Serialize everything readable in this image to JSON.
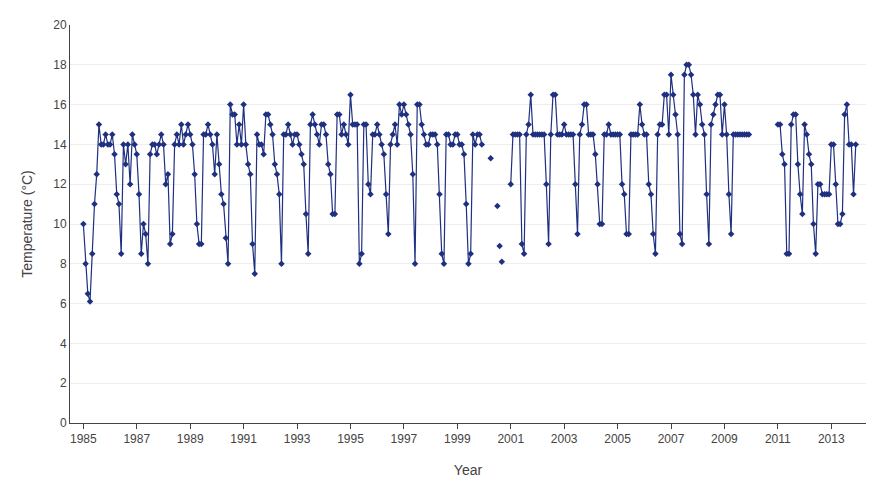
{
  "chart_data": {
    "type": "line",
    "xlabel": "Year",
    "ylabel": "Temperature (°C)",
    "xlim": [
      1984.5,
      2014.3
    ],
    "xticks": [
      1985,
      1987,
      1989,
      1991,
      1993,
      1995,
      1997,
      1999,
      2001,
      2003,
      2005,
      2007,
      2009,
      2011,
      2013
    ],
    "ylim": [
      0,
      20
    ],
    "yticks": [
      0,
      2,
      4,
      6,
      8,
      10,
      12,
      14,
      16,
      18,
      20
    ],
    "grid": true,
    "marker": "diamond",
    "series": [
      {
        "color": "#1F3080",
        "line_style": "solid",
        "x": [
          1985.0,
          1985.083,
          1985.167,
          1985.25,
          1985.333,
          1985.417,
          1985.5,
          1985.583,
          1985.667,
          1985.75,
          1985.833,
          1985.917,
          1986.0,
          1986.083,
          1986.167,
          1986.25,
          1986.333,
          1986.417,
          1986.5,
          1986.583,
          1986.667,
          1986.75,
          1986.833,
          1986.917,
          1987.0,
          1987.083,
          1987.167,
          1987.25,
          1987.333,
          1987.417,
          1987.5,
          1987.583,
          1987.667,
          1987.75,
          1987.833,
          1987.917,
          1988.0,
          1988.083,
          1988.167,
          1988.25,
          1988.333,
          1988.417,
          1988.5,
          1988.583,
          1988.667,
          1988.75,
          1988.833,
          1988.917,
          1989.0,
          1989.083,
          1989.167,
          1989.25,
          1989.333,
          1989.417,
          1989.5,
          1989.583,
          1989.667,
          1989.75,
          1989.833,
          1989.917,
          1990.0,
          1990.083,
          1990.167,
          1990.25,
          1990.333,
          1990.417,
          1990.5,
          1990.583,
          1990.667,
          1990.75,
          1990.833,
          1990.917,
          1991.0,
          1991.083,
          1991.167,
          1991.25,
          1991.333,
          1991.417,
          1991.5,
          1991.583,
          1991.667,
          1991.75,
          1991.833,
          1991.917,
          1992.0,
          1992.083,
          1992.167,
          1992.25,
          1992.333,
          1992.417,
          1992.5,
          1992.583,
          1992.667,
          1992.75,
          1992.833,
          1992.917,
          1993.0,
          1993.083,
          1993.167,
          1993.25,
          1993.333,
          1993.417,
          1993.5,
          1993.583,
          1993.667,
          1993.75,
          1993.833,
          1993.917,
          1994.0,
          1994.083,
          1994.167,
          1994.25,
          1994.333,
          1994.417,
          1994.5,
          1994.583,
          1994.667,
          1994.75,
          1994.833,
          1994.917,
          1995.0,
          1995.083,
          1995.167,
          1995.25,
          1995.333,
          1995.417,
          1995.5,
          1995.583,
          1995.667,
          1995.75,
          1995.833,
          1995.917,
          1996.0,
          1996.083,
          1996.167,
          1996.25,
          1996.333,
          1996.417,
          1996.5,
          1996.583,
          1996.667,
          1996.75,
          1996.833,
          1996.917,
          1997.0,
          1997.083,
          1997.167,
          1997.25,
          1997.333,
          1997.417,
          1997.5,
          1997.583,
          1997.667,
          1997.75,
          1997.833,
          1997.917,
          1998.0,
          1998.083,
          1998.167,
          1998.25,
          1998.333,
          1998.417,
          1998.5,
          1998.583,
          1998.667,
          1998.75,
          1998.833,
          1998.917,
          1999.0,
          1999.083,
          1999.167,
          1999.25,
          1999.333,
          1999.417,
          1999.5,
          1999.583,
          1999.667,
          1999.75,
          1999.833,
          1999.917
        ],
        "values": [
          10.0,
          8.0,
          6.5,
          6.1,
          8.5,
          11.0,
          12.5,
          15.0,
          14.0,
          14.0,
          14.5,
          14.0,
          14.0,
          14.5,
          13.5,
          11.5,
          11.0,
          8.5,
          14.0,
          13.0,
          14.0,
          12.0,
          14.5,
          14.0,
          13.5,
          11.5,
          8.5,
          10.0,
          9.5,
          8.0,
          13.5,
          14.0,
          14.0,
          13.5,
          14.0,
          14.5,
          14.0,
          12.0,
          12.5,
          9.0,
          9.5,
          14.0,
          14.5,
          14.0,
          15.0,
          14.0,
          14.5,
          15.0,
          14.5,
          14.0,
          12.5,
          10.0,
          9.0,
          9.0,
          14.5,
          14.5,
          15.0,
          14.5,
          14.0,
          12.5,
          14.5,
          13.0,
          11.5,
          11.0,
          9.3,
          8.0,
          16.0,
          15.5,
          15.5,
          14.0,
          15.0,
          14.0,
          16.0,
          14.0,
          13.0,
          12.5,
          9.0,
          7.5,
          14.5,
          14.0,
          14.0,
          13.5,
          15.5,
          15.5,
          15.0,
          14.5,
          13.0,
          12.5,
          11.5,
          8.0,
          14.5,
          14.5,
          15.0,
          14.5,
          14.0,
          14.5,
          14.5,
          14.0,
          13.5,
          13.0,
          10.5,
          8.5,
          15.0,
          15.5,
          15.0,
          14.5,
          14.0,
          15.0,
          15.0,
          14.5,
          13.0,
          12.5,
          10.5,
          10.5,
          15.5,
          15.5,
          14.5,
          15.0,
          14.5,
          14.0,
          16.5,
          15.0,
          15.0,
          15.0,
          8.0,
          8.5,
          15.0,
          15.0,
          12.0,
          11.5,
          14.5,
          14.5,
          15.0,
          14.5,
          14.0,
          13.5,
          11.5,
          9.5,
          14.0,
          14.5,
          15.0,
          14.0,
          16.0,
          15.5,
          16.0,
          15.5,
          15.0,
          14.5,
          12.5,
          8.0,
          16.0,
          16.0,
          15.0,
          14.5,
          14.0,
          14.0,
          14.5,
          14.5,
          14.5,
          14.0,
          11.5,
          8.5,
          8.0,
          14.5,
          14.5,
          14.0,
          14.0,
          14.5,
          14.5,
          14.0,
          14.0,
          13.5,
          11.0,
          8.0,
          8.5,
          14.5,
          14.0,
          14.5,
          14.5,
          14.0
        ]
      },
      {
        "color": "#1F3080",
        "line_style": "solid",
        "x": [
          2001.0,
          2001.083,
          2001.167,
          2001.25,
          2001.333,
          2001.417,
          2001.5,
          2001.583,
          2001.667,
          2001.75,
          2001.833,
          2001.917,
          2002.0,
          2002.083,
          2002.167,
          2002.25,
          2002.333,
          2002.417,
          2002.5,
          2002.583,
          2002.667,
          2002.75,
          2002.833,
          2002.917,
          2003.0,
          2003.083,
          2003.167,
          2003.25,
          2003.333,
          2003.417,
          2003.5,
          2003.583,
          2003.667,
          2003.75,
          2003.833,
          2003.917,
          2004.0,
          2004.083,
          2004.167,
          2004.25,
          2004.333,
          2004.417,
          2004.5,
          2004.583,
          2004.667,
          2004.75,
          2004.833,
          2004.917,
          2005.0,
          2005.083,
          2005.167,
          2005.25,
          2005.333,
          2005.417,
          2005.5,
          2005.583,
          2005.667,
          2005.75,
          2005.833,
          2005.917,
          2006.0,
          2006.083,
          2006.167,
          2006.25,
          2006.333,
          2006.417,
          2006.5,
          2006.583,
          2006.667,
          2006.75,
          2006.833,
          2006.917,
          2007.0,
          2007.083,
          2007.167,
          2007.25,
          2007.333,
          2007.417,
          2007.5,
          2007.583,
          2007.667,
          2007.75,
          2007.833,
          2007.917,
          2008.0,
          2008.083,
          2008.167,
          2008.25,
          2008.333,
          2008.417,
          2008.5,
          2008.583,
          2008.667,
          2008.75,
          2008.833,
          2008.917,
          2009.0,
          2009.083,
          2009.167,
          2009.25,
          2009.333,
          2009.417,
          2009.5,
          2009.583,
          2009.667,
          2009.75,
          2009.833,
          2009.917
        ],
        "values": [
          12.0,
          14.5,
          14.5,
          14.5,
          14.5,
          9.0,
          8.5,
          14.5,
          15.0,
          16.5,
          14.5,
          14.5,
          14.5,
          14.5,
          14.5,
          14.5,
          12.0,
          9.0,
          14.5,
          16.5,
          16.5,
          14.5,
          14.5,
          14.5,
          15.0,
          14.5,
          14.5,
          14.5,
          14.5,
          12.0,
          9.5,
          14.5,
          15.0,
          16.0,
          16.0,
          14.5,
          14.5,
          14.5,
          13.5,
          12.0,
          10.0,
          10.0,
          14.5,
          14.5,
          15.0,
          14.5,
          14.5,
          14.5,
          14.5,
          14.5,
          12.0,
          11.5,
          9.5,
          9.5,
          14.5,
          14.5,
          14.5,
          14.5,
          16.0,
          15.0,
          14.5,
          14.5,
          12.0,
          11.5,
          9.5,
          8.5,
          14.5,
          15.0,
          15.0,
          16.5,
          16.5,
          14.5,
          17.5,
          16.5,
          15.5,
          14.5,
          9.5,
          9.0,
          17.5,
          18.0,
          18.0,
          17.5,
          16.5,
          14.5,
          16.5,
          16.0,
          15.0,
          14.5,
          11.5,
          9.0,
          15.0,
          15.5,
          16.0,
          16.5,
          16.5,
          14.5,
          16.0,
          14.5,
          11.5,
          9.5,
          14.5,
          14.5,
          14.5,
          14.5,
          14.5,
          14.5,
          14.5,
          14.5
        ]
      },
      {
        "color": "#1F3080",
        "line_style": "solid",
        "x": [
          2011.0,
          2011.083,
          2011.167,
          2011.25,
          2011.333,
          2011.417,
          2011.5,
          2011.583,
          2011.667,
          2011.75,
          2011.833,
          2011.917,
          2012.0,
          2012.083,
          2012.167,
          2012.25,
          2012.333,
          2012.417,
          2012.5,
          2012.583,
          2012.667,
          2012.75,
          2012.833,
          2012.917,
          2013.0,
          2013.083,
          2013.167,
          2013.25,
          2013.333,
          2013.417,
          2013.5,
          2013.583,
          2013.667,
          2013.75,
          2013.833,
          2013.917
        ],
        "values": [
          15.0,
          15.0,
          13.5,
          13.0,
          8.5,
          8.5,
          15.0,
          15.5,
          15.5,
          13.0,
          11.5,
          10.5,
          15.0,
          14.5,
          13.5,
          13.0,
          10.0,
          8.5,
          12.0,
          12.0,
          11.5,
          11.5,
          11.5,
          11.5,
          14.0,
          14.0,
          12.0,
          10.0,
          10.0,
          10.5,
          15.5,
          16.0,
          14.0,
          14.0,
          11.5,
          14.0
        ]
      },
      {
        "type": "scatter",
        "color": "#1F3080",
        "x": [
          2000.25,
          2000.5,
          2000.583,
          2000.667
        ],
        "values": [
          13.3,
          10.9,
          8.9,
          8.1
        ]
      }
    ]
  }
}
